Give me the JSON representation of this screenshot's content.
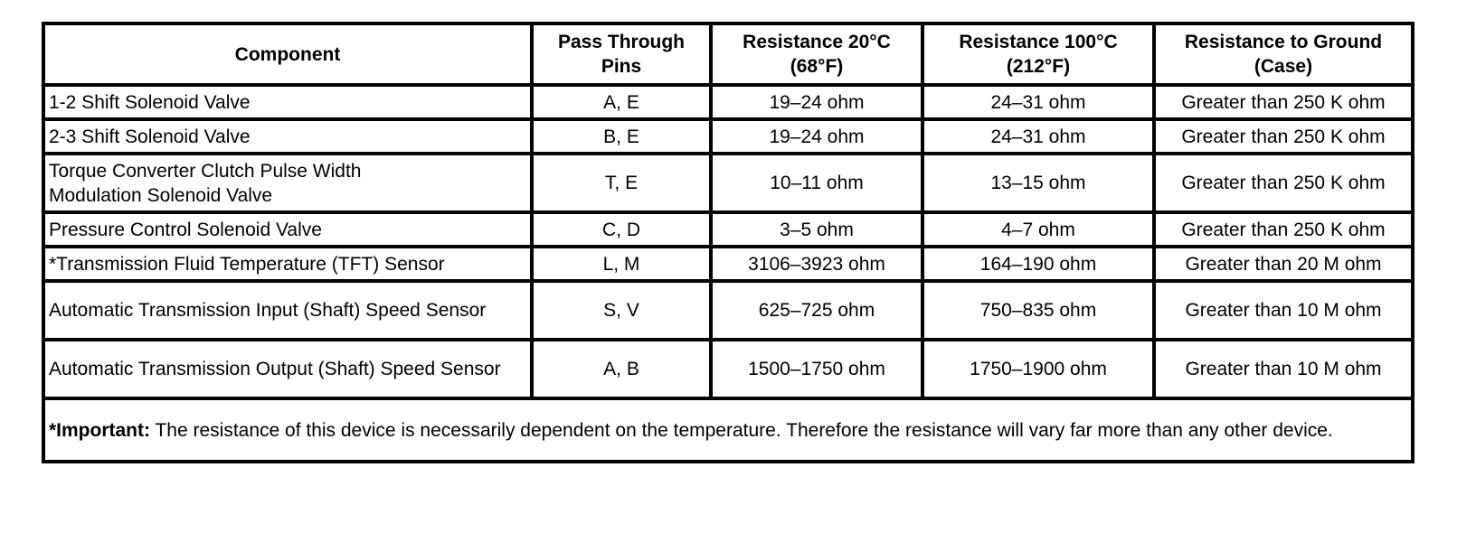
{
  "table": {
    "headers": [
      "Component",
      "Pass Through Pins",
      "Resistance 20°C (68°F)",
      "Resistance 100°C (212°F)",
      "Resistance to Ground (Case)"
    ],
    "header_lines": [
      [
        "Component",
        ""
      ],
      [
        "Pass Through",
        "Pins"
      ],
      [
        "Resistance 20°C",
        "(68°F)"
      ],
      [
        "Resistance 100°C",
        "(212°F)"
      ],
      [
        "Resistance to Ground",
        "(Case)"
      ]
    ],
    "rows": [
      {
        "component": "1-2 Shift Solenoid Valve",
        "pins": "A, E",
        "r20": "19–24 ohm",
        "r100": "24–31 ohm",
        "ground": "Greater than 250 K ohm"
      },
      {
        "component": "2-3 Shift Solenoid Valve",
        "pins": "B, E",
        "r20": "19–24 ohm",
        "r100": "24–31 ohm",
        "ground": "Greater than 250 K ohm"
      },
      {
        "component": "Torque Converter Clutch Pulse Width Modulation Solenoid Valve",
        "pins": "T, E",
        "r20": "10–11 ohm",
        "r100": "13–15 ohm",
        "ground": "Greater than 250 K ohm"
      },
      {
        "component": "Pressure Control Solenoid Valve",
        "pins": "C, D",
        "r20": "3–5 ohm",
        "r100": "4–7 ohm",
        "ground": "Greater than 250 K ohm"
      },
      {
        "component": "*Transmission Fluid Temperature (TFT) Sensor",
        "pins": "L, M",
        "r20": "3106–3923 ohm",
        "r100": "164–190 ohm",
        "ground": "Greater than 20 M ohm"
      },
      {
        "component": "Automatic Transmission Input (Shaft) Speed Sensor",
        "pins": "S, V",
        "r20": "625–725 ohm",
        "r100": "750–835 ohm",
        "ground": "Greater than 10 M ohm"
      },
      {
        "component": "Automatic Transmission Output (Shaft) Speed Sensor",
        "pins": "A, B",
        "r20": "1500–1750 ohm",
        "r100": "1750–1900 ohm",
        "ground": "Greater than 10 M ohm"
      }
    ],
    "note": {
      "label": "*Important:",
      "text": " The resistance of this device is necessarily dependent on the temperature. Therefore the resistance will vary far more than any other device."
    }
  }
}
